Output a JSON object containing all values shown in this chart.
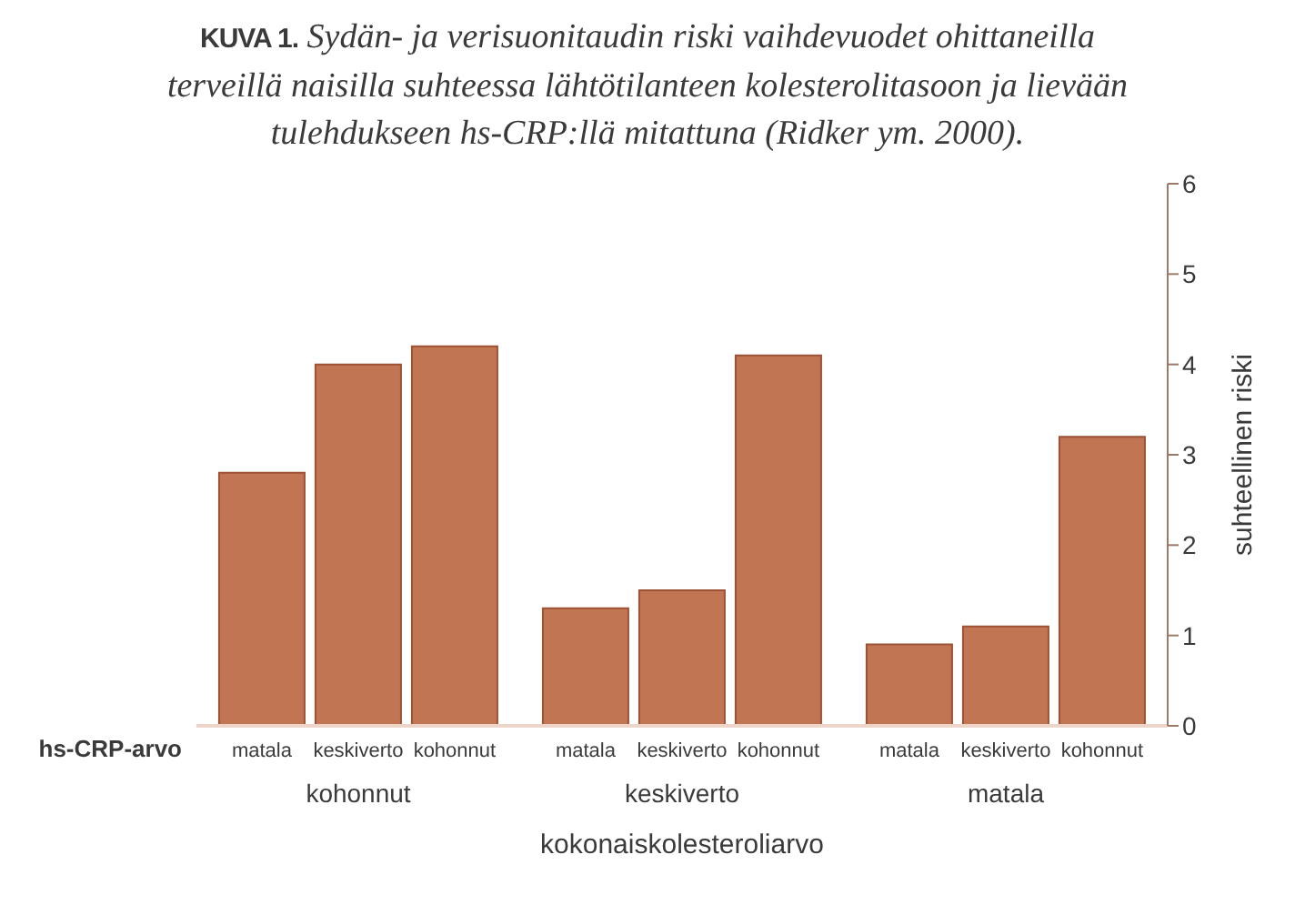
{
  "chart_data": {
    "type": "bar",
    "title": "KUVA 1. Sydän- ja verisuonitaudin riski vaihdevuodet ohittaneilla terveillä naisilla suhteessa lähtötilanteen kolesterolitasoon ja lievään tulehdukseen hs-CRP:llä mitattuna (Ridker ym. 2000).",
    "xlabel": "kokonaiskolesteroliarvo",
    "ylabel": "suhteellinen riski",
    "legend_title": "hs-CRP-arvo",
    "categories": [
      "kohonnut",
      "keskiverto",
      "matala"
    ],
    "series": [
      {
        "name": "matala",
        "color": "#c27552",
        "values": [
          2.8,
          1.3,
          0.9
        ]
      },
      {
        "name": "keskiverto",
        "color": "#c27552",
        "values": [
          4.0,
          1.5,
          1.1
        ]
      },
      {
        "name": "kohonnut",
        "color": "#c27552",
        "values": [
          4.2,
          4.1,
          3.2
        ]
      }
    ],
    "ylim": [
      0,
      6
    ],
    "yticks": [
      0,
      1,
      2,
      3,
      4,
      5,
      6
    ]
  }
}
